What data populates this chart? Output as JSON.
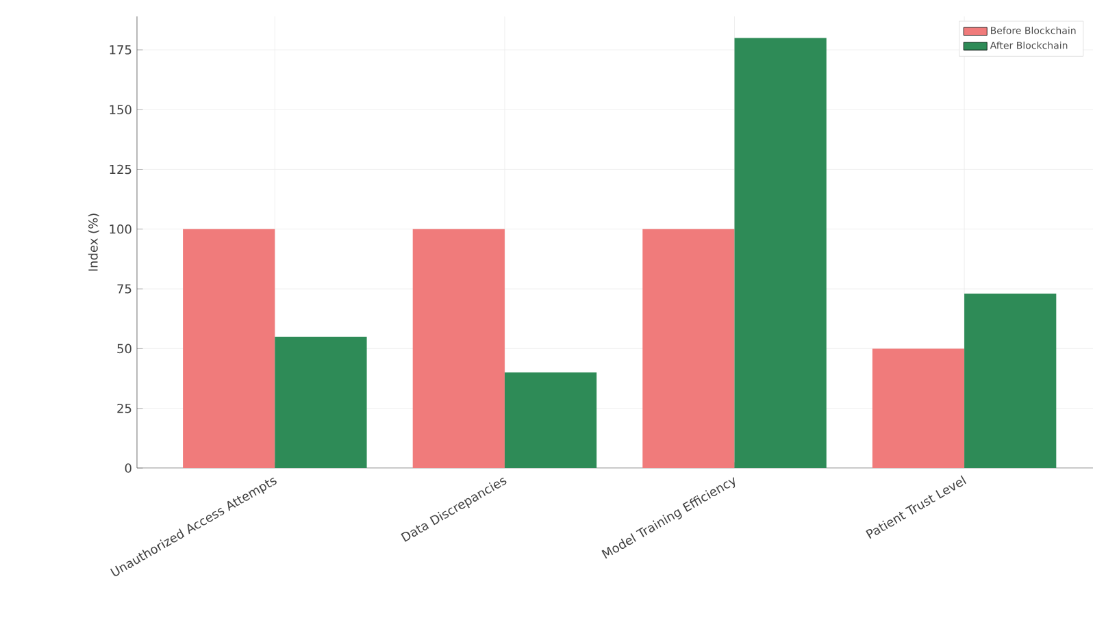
{
  "chart_data": {
    "type": "bar",
    "ylabel": "Index (%)",
    "categories": [
      "Unauthorized Access Attempts",
      "Data Discrepancies",
      "Model Training Efficiency",
      "Patient Trust Level"
    ],
    "series": [
      {
        "name": "Before Blockchain",
        "color": "#f07b7b",
        "values": [
          100,
          100,
          100,
          50
        ]
      },
      {
        "name": "After Blockchain",
        "color": "#2e8b57",
        "values": [
          55,
          40,
          180,
          73
        ]
      }
    ],
    "ylim": [
      0,
      189
    ],
    "yticks": [
      0,
      25,
      50,
      75,
      100,
      125,
      150,
      175
    ],
    "grid": true,
    "legend": "top right"
  }
}
